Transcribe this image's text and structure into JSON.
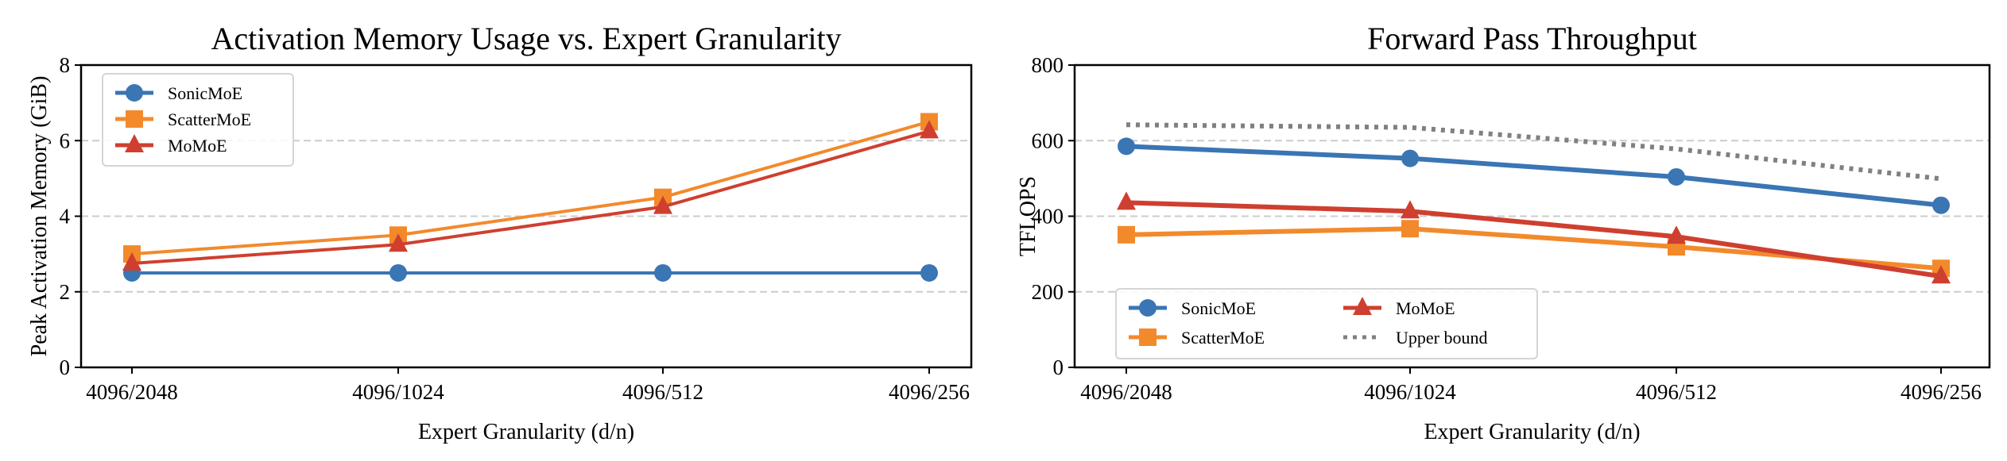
{
  "colors": {
    "SonicMoE": "#3a75b4",
    "ScatterMoE": "#f28a2c",
    "MoMoE": "#cf3f2f",
    "Upper bound": "#808080"
  },
  "chart_data": [
    {
      "type": "line",
      "title": "Activation Memory Usage vs. Expert Granularity",
      "xlabel": "Expert Granularity (d/n)",
      "ylabel": "Peak Activation Memory (GiB)",
      "categories": [
        "4096/2048",
        "4096/1024",
        "4096/512",
        "4096/256"
      ],
      "ylim": [
        0,
        8
      ],
      "yticks": [
        "0",
        "2",
        "4",
        "6",
        "8"
      ],
      "grid": "horizontal dashed",
      "legend": "top-left",
      "series": [
        {
          "name": "SonicMoE",
          "marker": "circle",
          "values": [
            2.5,
            2.5,
            2.5,
            2.5
          ]
        },
        {
          "name": "ScatterMoE",
          "marker": "square",
          "values": [
            3.0,
            3.5,
            4.5,
            6.5
          ]
        },
        {
          "name": "MoMoE",
          "marker": "triangle",
          "values": [
            2.75,
            3.25,
            4.25,
            6.25
          ]
        }
      ]
    },
    {
      "type": "line",
      "title": "Forward Pass Throughput",
      "xlabel": "Expert Granularity (d/n)",
      "ylabel": "TFLOPS",
      "categories": [
        "4096/2048",
        "4096/1024",
        "4096/512",
        "4096/256"
      ],
      "ylim": [
        0,
        800
      ],
      "yticks": [
        "0",
        "200",
        "400",
        "600",
        "800"
      ],
      "grid": "horizontal dashed",
      "legend": "bottom-left",
      "series": [
        {
          "name": "SonicMoE",
          "marker": "circle",
          "values": [
            585,
            553,
            504,
            429
          ]
        },
        {
          "name": "ScatterMoE",
          "marker": "square",
          "values": [
            351,
            367,
            319,
            262
          ]
        },
        {
          "name": "MoMoE",
          "marker": "triangle",
          "values": [
            436,
            413,
            346,
            241
          ]
        },
        {
          "name": "Upper bound",
          "marker": "none",
          "style": "dotted",
          "values": [
            642,
            635,
            578,
            499
          ]
        }
      ]
    }
  ]
}
